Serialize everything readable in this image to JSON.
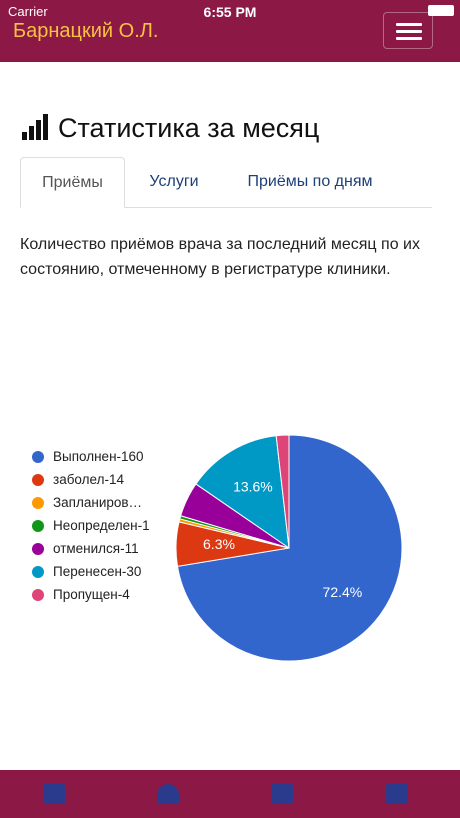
{
  "status_bar": {
    "carrier": "Carrier",
    "time": "6:55 PM"
  },
  "header": {
    "title": "Барнацкий О.Л."
  },
  "page_title": "Статистика за месяц",
  "tabs": [
    "Приёмы",
    "Услуги",
    "Приёмы по дням"
  ],
  "description": "Количество приёмов врача за последний месяц по их состоянию, отмеченному в регистратуре клиники.",
  "chart_data": {
    "type": "pie",
    "categories": [
      "Выполнен-160",
      "заболел-14",
      "Запланиров…",
      "Неопределен-1",
      "отменился-11",
      "Перенесен-30",
      "Пропущен-4"
    ],
    "values": [
      72.4,
      6.3,
      0.45,
      0.45,
      4.98,
      13.6,
      1.81
    ],
    "value_labels": [
      "72.4%",
      "6.3%",
      null,
      null,
      null,
      "13.6%",
      null
    ],
    "colors": [
      "#3366cc",
      "#dc3912",
      "#ff9900",
      "#109618",
      "#990099",
      "#0099c6",
      "#dd4477"
    ],
    "legend": "left"
  }
}
